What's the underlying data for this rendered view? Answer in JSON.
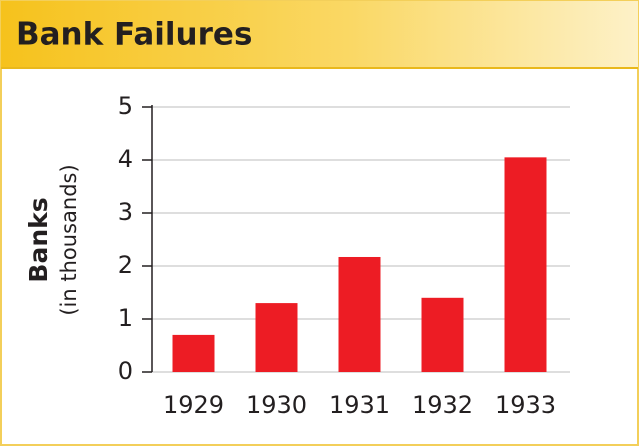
{
  "chart_data": {
    "type": "bar",
    "title": "Bank Failures",
    "y_label": "Banks",
    "y_sublabel": "(in thousands)",
    "categories": [
      "1929",
      "1930",
      "1931",
      "1932",
      "1933"
    ],
    "values": [
      0.7,
      1.3,
      2.17,
      1.4,
      4.05
    ],
    "color": "#ed1c24",
    "ylim": [
      0,
      5
    ],
    "yticks": [
      0,
      1,
      2,
      3,
      4,
      5
    ],
    "grid": true
  }
}
